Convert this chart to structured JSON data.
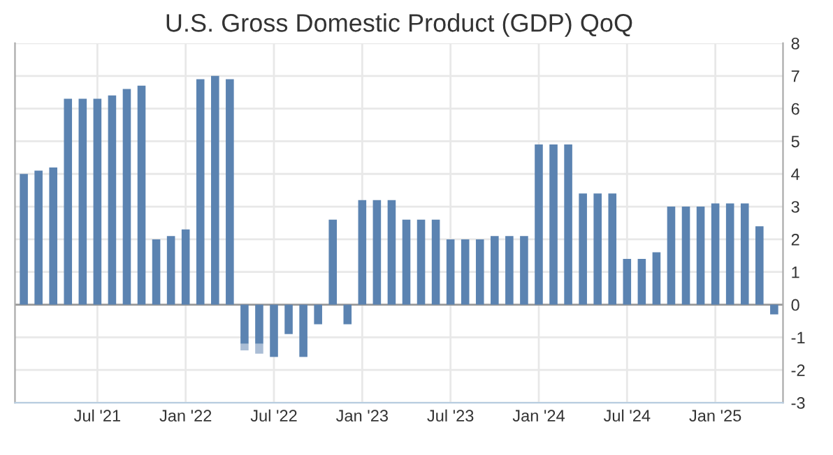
{
  "chart_data": {
    "type": "bar",
    "title": "U.S. Gross Domestic Product (GDP) QoQ",
    "categories": [
      null,
      null,
      null,
      null,
      null,
      "Jul '21",
      null,
      null,
      null,
      null,
      null,
      "Jan '22",
      null,
      null,
      null,
      null,
      null,
      "Jul '22",
      null,
      null,
      null,
      null,
      null,
      "Jan '23",
      null,
      null,
      null,
      null,
      null,
      "Jul '23",
      null,
      null,
      null,
      null,
      null,
      "Jan '24",
      null,
      null,
      null,
      null,
      null,
      "Jul '24",
      null,
      null,
      null,
      null,
      null,
      "Jan '25",
      null,
      null,
      null,
      null
    ],
    "series": [
      {
        "color": "#5b83b1",
        "values": [
          4.0,
          4.1,
          4.2,
          6.3,
          6.3,
          6.3,
          6.4,
          6.6,
          6.7,
          2.0,
          2.1,
          2.3,
          6.9,
          7.0,
          6.9,
          -1.2,
          -1.2,
          -1.6,
          -0.9,
          -1.6,
          -0.6,
          2.6,
          -0.6,
          3.2,
          3.2,
          3.2,
          2.6,
          2.6,
          2.6,
          2.0,
          2.0,
          2.0,
          2.1,
          2.1,
          2.1,
          4.9,
          4.9,
          4.9,
          3.4,
          3.4,
          3.4,
          1.4,
          1.4,
          1.6,
          3.0,
          3.0,
          3.0,
          3.1,
          3.1,
          3.1,
          2.4,
          -0.3
        ]
      },
      {
        "color": "#aabdd5",
        "values": [
          null,
          null,
          null,
          null,
          null,
          null,
          null,
          null,
          null,
          null,
          null,
          null,
          null,
          null,
          null,
          -0.2,
          -0.3,
          null,
          null,
          null,
          null,
          null,
          null,
          null,
          null,
          null,
          null,
          null,
          null,
          null,
          null,
          null,
          null,
          null,
          null,
          null,
          null,
          null,
          null,
          null,
          null,
          null,
          null,
          null,
          null,
          null,
          null,
          null,
          null,
          null,
          null,
          null
        ]
      }
    ],
    "stacked": true,
    "ylim": [
      -3,
      8
    ],
    "yticks": [
      -3,
      -2,
      -1,
      0,
      1,
      2,
      3,
      4,
      5,
      6,
      7,
      8
    ],
    "grid": true
  }
}
